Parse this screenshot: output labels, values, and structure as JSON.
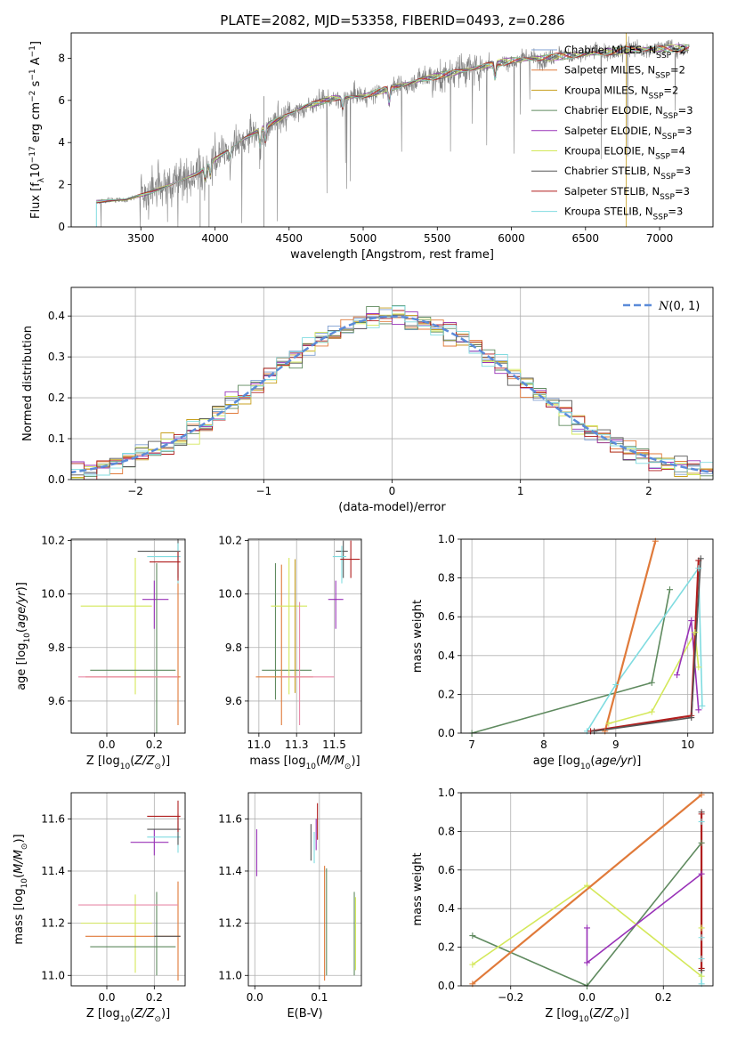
{
  "figure_title": "PLATE=2082, MJD=53358, FIBERID=0493, z=0.286",
  "colors": {
    "Chabrier MILES": "#7f9fd0",
    "Salpeter MILES": "#e07a3a",
    "Kroupa MILES": "#c8a020",
    "Chabrier ELODIE": "#5f8a5f",
    "Salpeter ELODIE": "#9932b8",
    "Kroupa ELODIE": "#d4e85a",
    "Chabrier STELIB": "#555555",
    "Salpeter STELIB": "#b01e1e",
    "Kroupa STELIB": "#80dce0",
    "data": "#808080",
    "normal": "#5b8bd9",
    "pink": "#e88aa8"
  },
  "chart_data": [
    {
      "id": "spectrum",
      "type": "line",
      "xlabel": "wavelength [Angstrom, rest frame]",
      "ylabel": "Flux [f_λ 10^-17 erg cm^-2 s^-1 A^-1]",
      "xlim": [
        3030,
        7360
      ],
      "ylim": [
        0,
        9.2
      ],
      "xticks": [
        3500,
        4000,
        4500,
        5000,
        5500,
        6000,
        6500,
        7000
      ],
      "yticks": [
        0,
        2,
        4,
        6,
        8
      ],
      "grid": false,
      "legend_loc": "upper right",
      "legend": [
        {
          "name": "Chabrier MILES",
          "nssp": "2"
        },
        {
          "name": "Salpeter MILES",
          "nssp": "2"
        },
        {
          "name": "Kroupa MILES",
          "nssp": "2"
        },
        {
          "name": "Chabrier ELODIE",
          "nssp": "3"
        },
        {
          "name": "Salpeter ELODIE",
          "nssp": "3"
        },
        {
          "name": "Kroupa ELODIE",
          "nssp": "4"
        },
        {
          "name": "Chabrier STELIB",
          "nssp": "3"
        },
        {
          "name": "Salpeter STELIB",
          "nssp": "3"
        },
        {
          "name": "Kroupa STELIB",
          "nssp": "3"
        }
      ],
      "data_wavelength_range": [
        3200,
        7200
      ],
      "continuum": {
        "x": [
          3200,
          3400,
          3550,
          3700,
          3800,
          3900,
          4000,
          4200,
          4400,
          4600,
          4800,
          5000,
          5200,
          5400,
          5600,
          5800,
          6000,
          6200,
          6500,
          6800,
          7200
        ],
        "y": [
          1.2,
          1.3,
          1.6,
          2.0,
          2.3,
          2.6,
          3.2,
          4.2,
          5.0,
          5.7,
          6.1,
          6.2,
          6.6,
          7.0,
          7.3,
          7.6,
          7.9,
          8.0,
          8.2,
          8.4,
          8.5
        ]
      }
    },
    {
      "id": "residuals",
      "type": "line",
      "xlabel": "(data-model)/error",
      "ylabel": "Normed distribution",
      "xlim": [
        -2.5,
        2.5
      ],
      "ylim": [
        0,
        0.47
      ],
      "xticks": [
        -2,
        -1,
        0,
        1,
        2
      ],
      "yticks": [
        0.0,
        0.1,
        0.2,
        0.3,
        0.4
      ],
      "grid": true,
      "legend_loc": "upper right",
      "normal_label": "N(0,1)",
      "bin_width": 0.1
    },
    {
      "id": "age_vs_Z",
      "type": "scatter",
      "xlabel": "Z [log10(Z/Z_sun)]",
      "ylabel": "age [log10(age/yr)]",
      "xlim": [
        -0.15,
        0.33
      ],
      "ylim": [
        9.48,
        10.205
      ],
      "xticks": [
        0.0,
        0.2
      ],
      "yticks": [
        9.6,
        9.8,
        10.0,
        10.2
      ],
      "grid": true,
      "errorbars": [
        {
          "s": "Kroupa ELODIE",
          "x": 0.12,
          "xerr": [
            0.23,
            0.07
          ],
          "y": 9.955,
          "yerr": [
            0.33,
            0.18
          ]
        },
        {
          "s": "Salpeter ELODIE",
          "x": 0.2,
          "xerr": [
            0.05,
            0.06
          ],
          "y": 9.98,
          "yerr": [
            0.11,
            0.07
          ]
        },
        {
          "s": "Chabrier ELODIE",
          "x": 0.21,
          "xerr": [
            0.28,
            0.08
          ],
          "y": 9.715,
          "yerr": [
            0.5,
            0.4
          ]
        },
        {
          "s": "Salpeter MILES",
          "x": 0.3,
          "xerr": [
            0.39,
            0.01
          ],
          "y": 9.69,
          "yerr": [
            0.18,
            0.36
          ]
        },
        {
          "s": "pink",
          "x": 0.17,
          "xerr": [
            0.29,
            0.13
          ],
          "y": 9.69,
          "yerr": [
            0.0,
            0.0
          ]
        },
        {
          "s": "Chabrier STELIB",
          "x": 0.3,
          "xerr": [
            0.17,
            0.01
          ],
          "y": 10.16,
          "yerr": [
            0.1,
            0.05
          ]
        },
        {
          "s": "Kroupa STELIB",
          "x": 0.3,
          "xerr": [
            0.13,
            0.01
          ],
          "y": 10.14,
          "yerr": [
            0.1,
            0.05
          ]
        },
        {
          "s": "Salpeter STELIB",
          "x": 0.3,
          "xerr": [
            0.12,
            0.01
          ],
          "y": 10.12,
          "yerr": [
            0.07,
            0.04
          ]
        }
      ]
    },
    {
      "id": "age_vs_mass",
      "type": "scatter",
      "xlabel": "mass [log10(M/M_sun)]",
      "ylabel": "",
      "xlim": [
        10.93,
        11.68
      ],
      "ylim": [
        9.48,
        10.205
      ],
      "xticks": [
        11.0,
        11.25,
        11.5
      ],
      "yticks": [
        9.6,
        9.8,
        10.0,
        10.2
      ],
      "grid": true,
      "errorbars": [
        {
          "s": "Chabrier ELODIE",
          "x": 11.11,
          "xerr": [
            0.09,
            0.24
          ],
          "y": 9.715,
          "yerr": [
            0.11,
            0.4
          ]
        },
        {
          "s": "Salpeter MILES",
          "x": 11.15,
          "xerr": [
            0.17,
            0.21
          ],
          "y": 9.69,
          "yerr": [
            0.18,
            0.42
          ]
        },
        {
          "s": "Kroupa ELODIE",
          "x": 11.2,
          "xerr": [
            0.12,
            0.12
          ],
          "y": 9.955,
          "yerr": [
            0.33,
            0.18
          ]
        },
        {
          "s": "Kroupa MILES",
          "x": 11.24,
          "xerr": [
            0.0,
            0.0
          ],
          "y": 9.69,
          "yerr": [
            0.06,
            0.44
          ]
        },
        {
          "s": "pink",
          "x": 11.27,
          "xerr": [
            0.12,
            0.23
          ],
          "y": 9.69,
          "yerr": [
            0.18,
            0.28
          ]
        },
        {
          "s": "Salpeter ELODIE",
          "x": 11.51,
          "xerr": [
            0.05,
            0.05
          ],
          "y": 9.98,
          "yerr": [
            0.11,
            0.07
          ]
        },
        {
          "s": "Chabrier STELIB",
          "x": 11.56,
          "xerr": [
            0.05,
            0.03
          ],
          "y": 10.16,
          "yerr": [
            0.1,
            0.04
          ]
        },
        {
          "s": "Kroupa STELIB",
          "x": 11.55,
          "xerr": [
            0.06,
            0.03
          ],
          "y": 10.14,
          "yerr": [
            0.1,
            0.04
          ]
        },
        {
          "s": "Salpeter STELIB",
          "x": 11.61,
          "xerr": [
            0.07,
            0.06
          ],
          "y": 10.13,
          "yerr": [
            0.07,
            0.07
          ]
        }
      ]
    },
    {
      "id": "weight_vs_age",
      "type": "line",
      "xlabel": "age [log10(age/yr)]",
      "ylabel": "mass weight",
      "xlim": [
        6.85,
        10.35
      ],
      "ylim": [
        0,
        1.0
      ],
      "xticks": [
        7,
        8,
        9,
        10
      ],
      "yticks": [
        0.0,
        0.2,
        0.4,
        0.6,
        0.8,
        1.0
      ],
      "grid": true,
      "series": [
        {
          "s": "Chabrier ELODIE",
          "x": [
            7.0,
            9.5,
            9.75
          ],
          "y": [
            0.0,
            0.26,
            0.74
          ]
        },
        {
          "s": "Kroupa STELIB",
          "x": [
            8.6,
            9.0,
            10.15,
            10.2
          ],
          "y": [
            0.01,
            0.25,
            0.85,
            0.14
          ]
        },
        {
          "s": "Salpeter MILES",
          "x": [
            8.85,
            9.55
          ],
          "y": [
            0.01,
            0.99
          ]
        },
        {
          "s": "Kroupa ELODIE",
          "x": [
            8.9,
            9.5,
            10.1,
            10.15
          ],
          "y": [
            0.05,
            0.11,
            0.52,
            0.34
          ]
        },
        {
          "s": "Salpeter ELODIE",
          "x": [
            9.85,
            10.05,
            10.15
          ],
          "y": [
            0.3,
            0.58,
            0.12
          ]
        },
        {
          "s": "Salpeter STELIB",
          "x": [
            8.65,
            10.05,
            10.15
          ],
          "y": [
            0.01,
            0.09,
            0.89
          ]
        },
        {
          "s": "Chabrier STELIB",
          "x": [
            8.7,
            10.05,
            10.18
          ],
          "y": [
            0.01,
            0.08,
            0.9
          ]
        }
      ]
    },
    {
      "id": "mass_vs_Z",
      "type": "scatter",
      "xlabel": "Z [log10(Z/Z_sun)]",
      "ylabel": "mass [log10(M/M_sun)]",
      "xlim": [
        -0.15,
        0.33
      ],
      "ylim": [
        10.96,
        11.7
      ],
      "xticks": [
        0.0,
        0.2
      ],
      "yticks": [
        11.0,
        11.2,
        11.4,
        11.6
      ],
      "grid": true,
      "errorbars": [
        {
          "s": "Kroupa ELODIE",
          "x": 0.12,
          "xerr": [
            0.23,
            0.07
          ],
          "y": 11.2,
          "yerr": [
            0.19,
            0.11
          ]
        },
        {
          "s": "Chabrier ELODIE",
          "x": 0.21,
          "xerr": [
            0.28,
            0.08
          ],
          "y": 11.11,
          "yerr": [
            0.11,
            0.21
          ]
        },
        {
          "s": "Salpeter MILES",
          "x": 0.3,
          "xerr": [
            0.39,
            0.01
          ],
          "y": 11.15,
          "yerr": [
            0.17,
            0.21
          ]
        },
        {
          "s": "pink",
          "x": 0.17,
          "xerr": [
            0.29,
            0.13
          ],
          "y": 11.27,
          "yerr": [
            0.0,
            0.0
          ]
        },
        {
          "s": "Chabrier STELIB",
          "x": 0.3,
          "xerr": [
            0.1,
            0.01
          ],
          "y": 11.15,
          "yerr": [
            0.0,
            0.0
          ]
        },
        {
          "s": "Salpeter ELODIE",
          "x": 0.2,
          "xerr": [
            0.1,
            0.06
          ],
          "y": 11.51,
          "yerr": [
            0.05,
            0.05
          ]
        },
        {
          "s": "Kroupa STELIB",
          "x": 0.3,
          "xerr": [
            0.13,
            0.01
          ],
          "y": 11.53,
          "yerr": [
            0.06,
            0.06
          ]
        },
        {
          "s": "Chabrier STELIB",
          "x": 0.3,
          "xerr": [
            0.13,
            0.01
          ],
          "y": 11.56,
          "yerr": [
            0.06,
            0.06
          ]
        },
        {
          "s": "Salpeter STELIB",
          "x": 0.3,
          "xerr": [
            0.13,
            0.01
          ],
          "y": 11.61,
          "yerr": [
            0.06,
            0.06
          ]
        }
      ]
    },
    {
      "id": "mass_vs_EBV",
      "type": "scatter",
      "xlabel": "E(B-V)",
      "ylabel": "",
      "xlim": [
        -0.01,
        0.165
      ],
      "ylim": [
        10.96,
        11.7
      ],
      "xticks": [
        0.0,
        0.1
      ],
      "yticks": [
        11.0,
        11.2,
        11.4,
        11.6
      ],
      "grid": true,
      "errorbars": [
        {
          "s": "Salpeter ELODIE",
          "x": 0.003,
          "xerr": [
            0,
            0
          ],
          "y": 11.47,
          "yerr": [
            0.09,
            0.09
          ]
        },
        {
          "s": "Chabrier STELIB",
          "x": 0.087,
          "xerr": [
            0,
            0
          ],
          "y": 11.51,
          "yerr": [
            0.07,
            0.07
          ]
        },
        {
          "s": "Kroupa STELIB",
          "x": 0.092,
          "xerr": [
            0,
            0
          ],
          "y": 11.49,
          "yerr": [
            0.06,
            0.06
          ]
        },
        {
          "s": "Salpeter STELIB",
          "x": 0.097,
          "xerr": [
            0,
            0
          ],
          "y": 11.59,
          "yerr": [
            0.07,
            0.07
          ]
        },
        {
          "s": "Salpeter ELODIE",
          "x": 0.095,
          "xerr": [
            0,
            0
          ],
          "y": 11.54,
          "yerr": [
            0.06,
            0.06
          ]
        },
        {
          "s": "Salpeter MILES",
          "x": 0.108,
          "xerr": [
            0,
            0
          ],
          "y": 11.21,
          "yerr": [
            0.23,
            0.21
          ]
        },
        {
          "s": "Chabrier ELODIE",
          "x": 0.111,
          "xerr": [
            0,
            0
          ],
          "y": 11.2,
          "yerr": [
            0.2,
            0.21
          ]
        },
        {
          "s": "Chabrier ELODIE",
          "x": 0.154,
          "xerr": [
            0,
            0
          ],
          "y": 11.15,
          "yerr": [
            0.15,
            0.17
          ]
        },
        {
          "s": "Kroupa ELODIE",
          "x": 0.156,
          "xerr": [
            0,
            0
          ],
          "y": 11.15,
          "yerr": [
            0.13,
            0.15
          ]
        }
      ]
    },
    {
      "id": "weight_vs_Z",
      "type": "line",
      "xlabel": "Z [log10(Z/Z_sun)]",
      "ylabel": "mass weight",
      "xlim": [
        -0.33,
        0.33
      ],
      "ylim": [
        0,
        1.0
      ],
      "xticks": [
        -0.2,
        0.0,
        0.2
      ],
      "yticks": [
        0.0,
        0.2,
        0.4,
        0.6,
        0.8,
        1.0
      ],
      "grid": true,
      "series": [
        {
          "s": "Chabrier ELODIE",
          "x": [
            -0.3,
            0.0,
            0.3
          ],
          "y": [
            0.26,
            0.0,
            0.74
          ]
        },
        {
          "s": "Kroupa ELODIE",
          "x": [
            -0.3,
            0.0,
            0.3,
            0.3
          ],
          "y": [
            0.11,
            0.52,
            0.05,
            0.3
          ]
        },
        {
          "s": "Salpeter MILES",
          "x": [
            -0.3,
            0.3
          ],
          "y": [
            0.01,
            0.99
          ]
        },
        {
          "s": "Salpeter ELODIE",
          "x": [
            0.0,
            0.0,
            0.3
          ],
          "y": [
            0.3,
            0.12,
            0.58
          ]
        },
        {
          "s": "Kroupa STELIB",
          "x": [
            0.3,
            0.3,
            0.3,
            0.3
          ],
          "y": [
            0.01,
            0.14,
            0.25,
            0.85
          ]
        },
        {
          "s": "Chabrier STELIB",
          "x": [
            0.3,
            0.3
          ],
          "y": [
            0.08,
            0.9
          ]
        },
        {
          "s": "Salpeter STELIB",
          "x": [
            0.3,
            0.3
          ],
          "y": [
            0.09,
            0.89
          ]
        }
      ]
    }
  ]
}
